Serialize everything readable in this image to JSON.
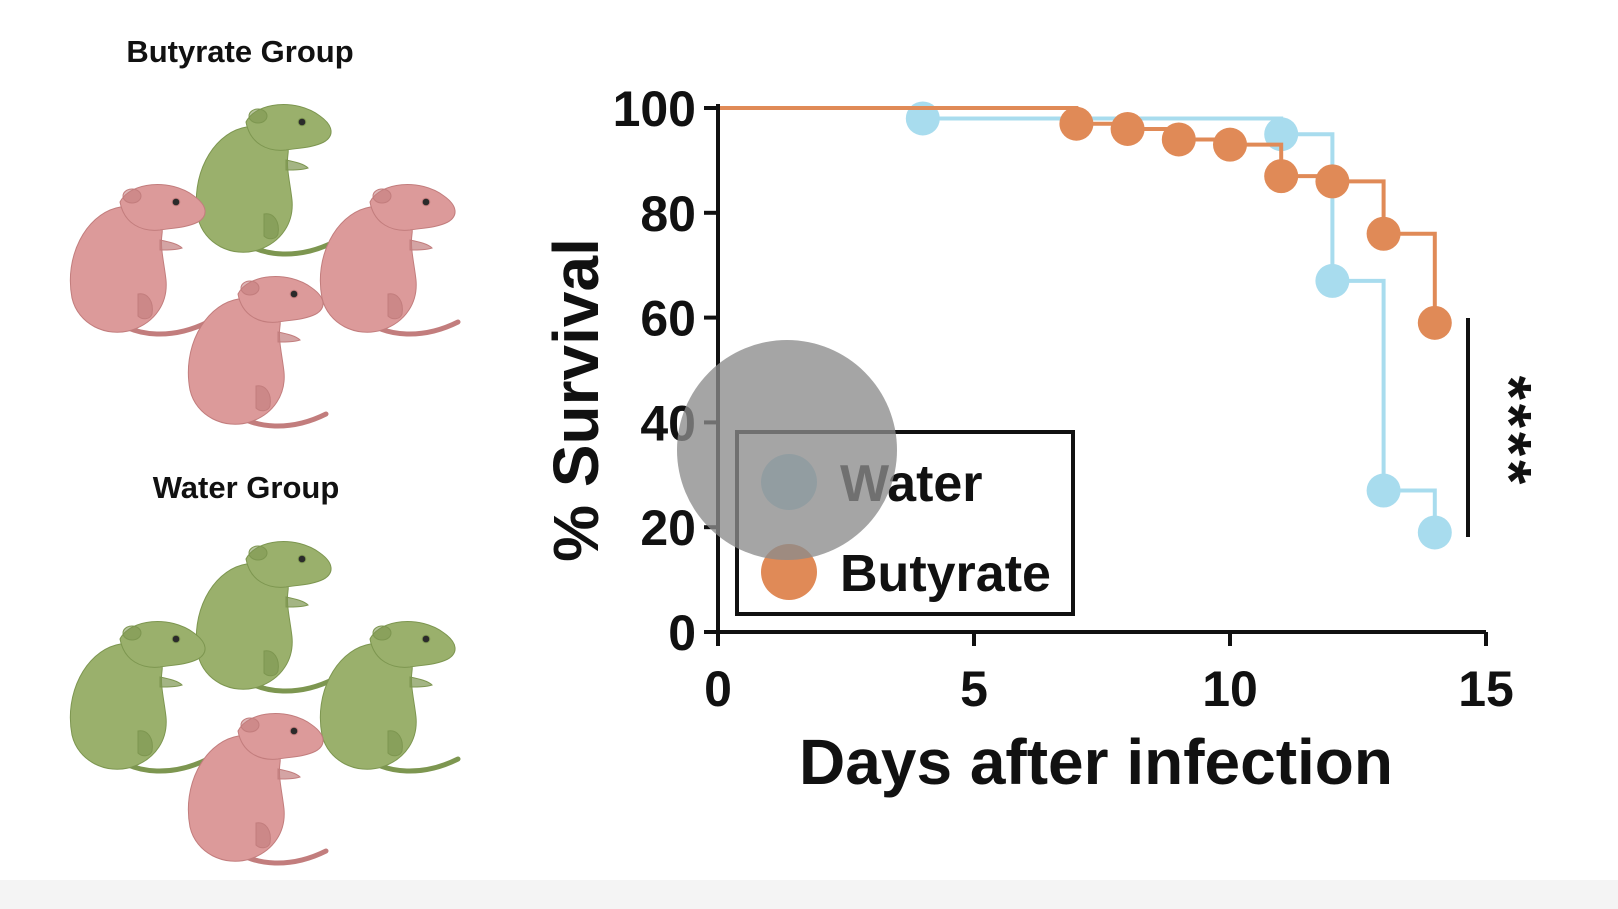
{
  "panels": {
    "butyrate_group": {
      "title": "Butyrate Group",
      "pups": [
        "green",
        "pink",
        "pink",
        "pink"
      ]
    },
    "water_group": {
      "title": "Water Group",
      "pups": [
        "green",
        "green",
        "green",
        "pink"
      ]
    }
  },
  "colors": {
    "water": "#a8dcee",
    "water_legend": "#6b8f9e",
    "butyrate": "#e08a57",
    "axis": "#111111",
    "pup_pink": "#dc9a9a",
    "pup_pink_dark": "#c27d7d",
    "pup_green": "#9ab06c",
    "pup_green_dark": "#7d9650",
    "cursor_overlay": "#8c8c8c"
  },
  "chart_data": {
    "type": "line",
    "subtype": "kaplan-meier-survival",
    "title": "",
    "xlabel": "Days after infection",
    "ylabel": "% Survival",
    "xlim": [
      0,
      15
    ],
    "ylim": [
      0,
      100
    ],
    "xticks": [
      0,
      5,
      10,
      15
    ],
    "yticks": [
      0,
      20,
      40,
      60,
      80,
      100
    ],
    "grid": false,
    "legend_position": "bottom-left",
    "significance": "****",
    "series": [
      {
        "name": "Water",
        "step_x": [
          0,
          4,
          11,
          12,
          13,
          14
        ],
        "step_y": [
          100,
          98,
          95,
          67,
          27,
          19
        ],
        "censor_x": [
          4,
          11,
          12,
          13,
          14
        ],
        "censor_y": [
          98,
          95,
          67,
          27,
          19
        ]
      },
      {
        "name": "Butyrate",
        "step_x": [
          0,
          7,
          8,
          9,
          10,
          11,
          12,
          13,
          14
        ],
        "step_y": [
          100,
          97,
          96,
          94,
          93,
          87,
          86,
          76,
          59
        ],
        "censor_x": [
          7,
          8,
          9,
          10,
          11,
          12,
          13,
          14
        ],
        "censor_y": [
          97,
          96,
          94,
          93,
          87,
          86,
          76,
          59
        ]
      }
    ]
  }
}
